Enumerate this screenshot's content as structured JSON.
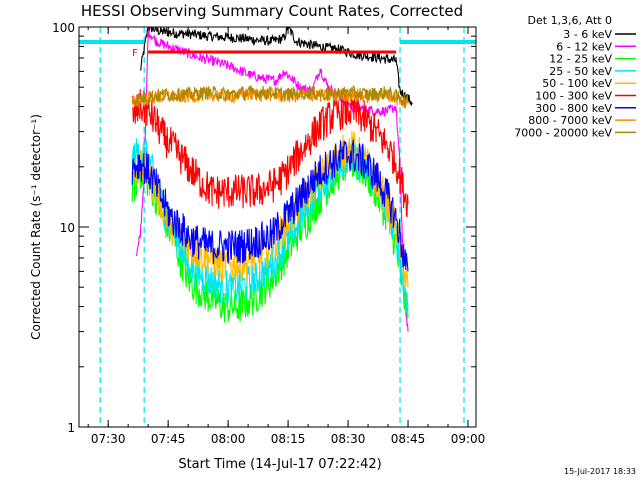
{
  "chart_data": {
    "type": "line",
    "title": "HESSI Observing Summary Count Rates, Corrected",
    "xlabel": "Start Time (14-Jul-17 07:22:42)",
    "ylabel": "Corrected Count Rate (s⁻¹ detector⁻¹)",
    "y_scale": "log",
    "ylim": [
      1,
      100
    ],
    "xlim": [
      "07:22:42",
      "09:02:00"
    ],
    "x_ticks": [
      "07:30",
      "07:45",
      "08:00",
      "08:15",
      "08:30",
      "08:45",
      "09:00"
    ],
    "y_ticks": [
      "1",
      "10",
      "100"
    ],
    "legend_title": "Det 1,3,6, Att 0",
    "legend_position": "top-right",
    "footer": "15-Jul-2017 18:33",
    "flag_label": "F",
    "flag_bar": {
      "start": "07:40",
      "end": "08:42",
      "value": 75,
      "color": "#ff0000"
    },
    "night_boundaries": [
      "07:28",
      "07:39",
      "08:43",
      "08:59"
    ],
    "night_color": "#00e5ee",
    "series": [
      {
        "name": "3 - 6 keV",
        "color": "#000000",
        "x": [
          "07:38",
          "07:40",
          "07:43",
          "07:47",
          "07:51",
          "07:55",
          "07:59",
          "08:03",
          "08:07",
          "08:11",
          "08:14",
          "08:15",
          "08:17",
          "08:20",
          "08:24",
          "08:28",
          "08:32",
          "08:36",
          "08:40",
          "08:42",
          "08:43",
          "08:46"
        ],
        "values": [
          60,
          100,
          95,
          93,
          92,
          90,
          89,
          88,
          86,
          85,
          88,
          100,
          85,
          82,
          79,
          77,
          73,
          71,
          69,
          68,
          48,
          42
        ]
      },
      {
        "name": "6 - 12 keV",
        "color": "#ff00ff",
        "x": [
          "07:37",
          "07:38",
          "07:39",
          "07:40",
          "07:42",
          "07:45",
          "07:49",
          "07:53",
          "07:57",
          "08:01",
          "08:05",
          "08:09",
          "08:12",
          "08:14",
          "08:16",
          "08:18",
          "08:21",
          "08:23",
          "08:25",
          "08:28",
          "08:31",
          "08:34",
          "08:37",
          "08:40",
          "08:42",
          "08:43",
          "08:44",
          "08:45"
        ],
        "values": [
          7,
          9,
          18,
          95,
          85,
          80,
          75,
          70,
          67,
          63,
          58,
          55,
          54,
          60,
          55,
          50,
          48,
          62,
          50,
          45,
          40,
          39,
          38,
          38,
          40,
          20,
          5,
          3
        ]
      },
      {
        "name": "12 - 25 keV",
        "color": "#00ff00",
        "x": [
          "07:36",
          "07:38",
          "07:40",
          "07:42",
          "07:44",
          "07:46",
          "07:48",
          "07:50",
          "07:52",
          "07:55",
          "07:59",
          "08:03",
          "08:07",
          "08:11",
          "08:14",
          "08:17",
          "08:20",
          "08:23",
          "08:26",
          "08:29",
          "08:31",
          "08:34",
          "08:37",
          "08:40",
          "08:42",
          "08:43",
          "08:44",
          "08:45"
        ],
        "values": [
          15,
          19,
          17,
          14,
          11,
          9,
          7,
          5.5,
          5,
          4.5,
          4,
          4,
          4.5,
          5.5,
          7,
          9,
          11,
          14,
          17,
          20,
          21,
          19,
          15,
          11,
          8,
          6,
          4.5,
          3.5
        ]
      },
      {
        "name": "25 - 50 keV",
        "color": "#00e5ee",
        "x": [
          "07:36",
          "07:38",
          "07:40",
          "07:42",
          "07:44",
          "07:46",
          "07:48",
          "07:50",
          "07:52",
          "07:55",
          "07:59",
          "08:03",
          "08:07",
          "08:11",
          "08:14",
          "08:17",
          "08:20",
          "08:23",
          "08:26",
          "08:29",
          "08:31",
          "08:34",
          "08:37",
          "08:40",
          "08:42",
          "08:43",
          "08:44",
          "08:45"
        ],
        "values": [
          22,
          24,
          22,
          16,
          12,
          10,
          8,
          6.5,
          6,
          5.5,
          5,
          5,
          5.5,
          6.5,
          8,
          10,
          13,
          16,
          19,
          22,
          22,
          20,
          16,
          12,
          9,
          7,
          5,
          4
        ]
      },
      {
        "name": "50 - 100 keV",
        "color": "#ffbb00",
        "x": [
          "07:36",
          "07:38",
          "07:40",
          "07:42",
          "07:44",
          "07:46",
          "07:48",
          "07:50",
          "07:52",
          "07:55",
          "07:59",
          "08:03",
          "08:07",
          "08:11",
          "08:14",
          "08:17",
          "08:20",
          "08:23",
          "08:26",
          "08:29",
          "08:31",
          "08:34",
          "08:37",
          "08:40",
          "08:42",
          "08:43",
          "08:44",
          "08:45"
        ],
        "values": [
          18,
          20,
          18,
          15,
          12,
          10,
          9,
          8,
          7.5,
          7,
          6.5,
          6.5,
          7,
          8,
          10,
          12,
          15,
          18,
          21,
          24,
          25,
          22,
          17,
          13,
          10,
          8,
          6,
          5
        ]
      },
      {
        "name": "100 - 300 keV",
        "color": "#ff0000",
        "x": [
          "07:36",
          "07:38",
          "07:40",
          "07:42",
          "07:44",
          "07:47",
          "07:50",
          "07:53",
          "07:56",
          "07:59",
          "08:03",
          "08:07",
          "08:11",
          "08:14",
          "08:17",
          "08:20",
          "08:23",
          "08:26",
          "08:29",
          "08:31",
          "08:34",
          "08:37",
          "08:40",
          "08:42",
          "08:43",
          "08:44",
          "08:45"
        ],
        "values": [
          35,
          40,
          38,
          33,
          28,
          24,
          20,
          17,
          15,
          15,
          15,
          15,
          16,
          18,
          22,
          27,
          32,
          36,
          38,
          38,
          35,
          30,
          25,
          21,
          18,
          15,
          13
        ]
      },
      {
        "name": "300 - 800 keV",
        "color": "#0000ff",
        "x": [
          "07:36",
          "07:38",
          "07:40",
          "07:42",
          "07:44",
          "07:46",
          "07:48",
          "07:50",
          "07:52",
          "07:55",
          "07:59",
          "08:03",
          "08:07",
          "08:11",
          "08:14",
          "08:17",
          "08:20",
          "08:23",
          "08:26",
          "08:29",
          "08:31",
          "08:34",
          "08:37",
          "08:40",
          "08:42",
          "08:43",
          "08:44",
          "08:45"
        ],
        "values": [
          20,
          21,
          19,
          16,
          13,
          11,
          10,
          9,
          8.5,
          8,
          8,
          8,
          8.5,
          9,
          11,
          13,
          16,
          19,
          21,
          23,
          23,
          21,
          18,
          14,
          11,
          9,
          7,
          6
        ]
      },
      {
        "name": "800 - 7000 keV",
        "color": "#ff8800",
        "x": [
          "07:36",
          "07:40",
          "07:45",
          "07:50",
          "07:55",
          "08:00",
          "08:05",
          "08:10",
          "08:15",
          "08:20",
          "08:25",
          "08:30",
          "08:35",
          "08:40",
          "08:43",
          "08:45"
        ],
        "values": [
          42,
          44,
          45,
          45,
          46,
          45,
          46,
          46,
          45,
          46,
          45,
          46,
          45,
          46,
          43,
          41
        ]
      },
      {
        "name": "7000 - 20000 keV",
        "color": "#aa8800",
        "x": [
          "07:36",
          "07:40",
          "07:45",
          "07:50",
          "07:55",
          "08:00",
          "08:05",
          "08:10",
          "08:15",
          "08:20",
          "08:25",
          "08:30",
          "08:35",
          "08:40",
          "08:43",
          "08:45"
        ],
        "values": [
          43,
          45,
          46,
          46,
          47,
          46,
          47,
          47,
          46,
          47,
          46,
          47,
          46,
          47,
          44,
          42
        ]
      }
    ]
  }
}
